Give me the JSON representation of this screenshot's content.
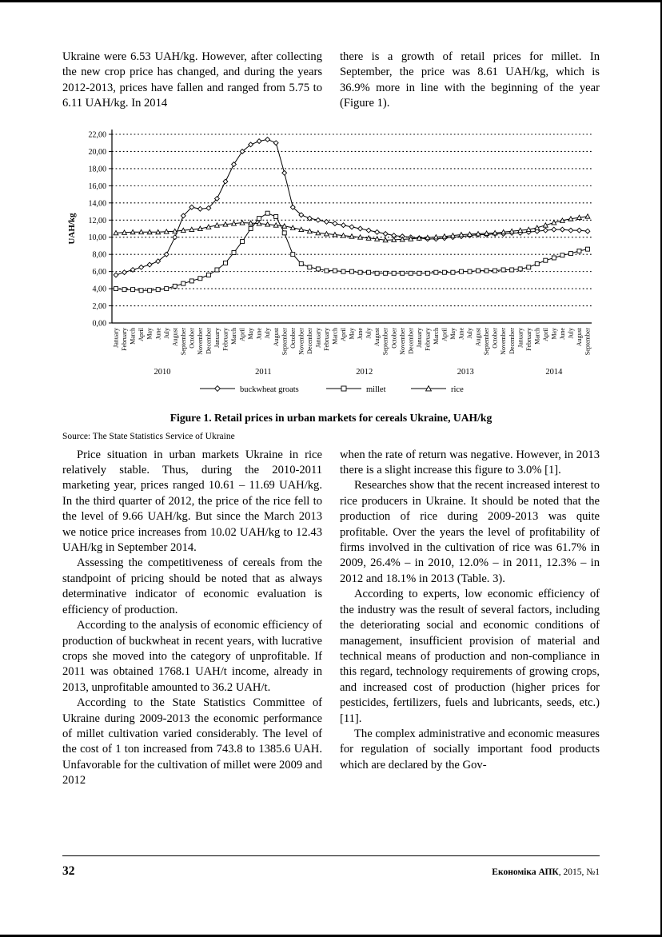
{
  "page": {
    "footer_page_number": "32",
    "footer_journal_name": "Економіка АПК",
    "footer_journal_issue": ", 2015, №1"
  },
  "intro": {
    "left": "Ukraine were 6.53 UAH/kg. However, after collecting the new crop price has changed, and during the years 2012-2013, prices have fallen and ranged from 5.75 to 6.11 UAH/kg. In 2014",
    "right": "there is a growth of retail prices for millet. In September, the price was 8.61 UAH/kg, which is 36.9% more in line with the beginning of the year (Figure 1)."
  },
  "figure": {
    "caption": "Figure 1. Retail prices in urban markets for cereals Ukraine, UAH/kg",
    "source": "Source: The State Statistics Service of Ukraine"
  },
  "body": {
    "left_paragraphs": [
      "Price situation in urban markets Ukraine in rice relatively stable. Thus, during the 2010-2011 marketing year, prices ranged 10.61 – 11.69 UAH/kg. In the third quarter of 2012, the price of the rice fell to the level of 9.66 UAH/kg. But since the March 2013 we notice price increases from 10.02 UAH/kg to 12.43 UAH/kg in September 2014.",
      "Assessing the competitiveness of cereals from the standpoint of pricing should be noted that as always determinative indicator of economic evaluation is efficiency of production.",
      "According to the analysis of economic efficiency of production of buckwheat in recent years, with lucrative crops she moved into the category of unprofitable. If 2011 was obtained 1768.1 UAH/t income, already in 2013, unprofitable amounted to 36.2 UAH/t.",
      "According to the State Statistics Committee of Ukraine during 2009-2013 the economic performance of millet cultivation varied considerably. The level of the cost of 1 ton increased from 743.8 to 1385.6 UAH. Unfavorable for the cultivation of millet were 2009 and 2012"
    ],
    "right_paragraphs": [
      "when the rate of return was negative. However, in 2013 there is a slight increase this figure to 3.0% [1].",
      "Researches show that the recent increased interest to rice producers in Ukraine. It should be noted that the production of rice during 2009-2013 was quite profitable. Over the years the level of profitability of firms involved in the cultivation of rice was 61.7% in 2009, 26.4% – in 2010, 12.0% – in 2011, 12.3% – in 2012 and 18.1% in 2013 (Table. 3).",
      "According to experts, low economic efficiency of the industry was the result of several factors, including the deteriorating social and economic conditions of management, insufficient provision of material and technical means of production and non-compliance in this regard, technology requirements of growing crops, and increased cost of production (higher prices for pesticides, fertilizers, fuels and lubricants, seeds, etc.) [11].",
      "The complex administrative and economic measures for regulation of socially important food products which are declared by the Gov-"
    ]
  },
  "chart_data": {
    "type": "line",
    "title": "",
    "xlabel": "",
    "ylabel": "UAH/kg",
    "ylim": [
      0,
      22
    ],
    "ytick_step": 2,
    "ytick_labels": [
      "0,00",
      "2,00",
      "4,00",
      "6,00",
      "8,00",
      "10,00",
      "12,00",
      "14,00",
      "16,00",
      "18,00",
      "20,00",
      "22,00"
    ],
    "grid": "dotted-horizontal",
    "legend_position": "bottom",
    "month_names": [
      "January",
      "February",
      "March",
      "April",
      "May",
      "June",
      "July",
      "August",
      "September",
      "October",
      "November",
      "December"
    ],
    "years": [
      {
        "year": "2010",
        "count": 12
      },
      {
        "year": "2011",
        "count": 12
      },
      {
        "year": "2012",
        "count": 12
      },
      {
        "year": "2013",
        "count": 12
      },
      {
        "year": "2014",
        "count": 9
      }
    ],
    "series": [
      {
        "name": "buckwheat groats",
        "marker": "diamond",
        "values": [
          5.6,
          5.9,
          6.2,
          6.5,
          6.8,
          7.2,
          8.0,
          10.0,
          12.5,
          13.5,
          13.3,
          13.4,
          14.5,
          16.5,
          18.5,
          20.0,
          20.8,
          21.2,
          21.4,
          21.0,
          17.5,
          13.5,
          12.6,
          12.2,
          12.0,
          11.8,
          11.6,
          11.4,
          11.2,
          11.0,
          10.8,
          10.6,
          10.4,
          10.2,
          10.1,
          10.0,
          9.9,
          9.8,
          9.8,
          9.9,
          10.0,
          10.1,
          10.2,
          10.3,
          10.3,
          10.4,
          10.4,
          10.5,
          10.5,
          10.6,
          10.7,
          10.8,
          10.9,
          10.9,
          10.8,
          10.8,
          10.7
        ]
      },
      {
        "name": "millet",
        "marker": "square",
        "values": [
          4.0,
          3.9,
          3.9,
          3.8,
          3.8,
          3.9,
          4.0,
          4.3,
          4.6,
          4.9,
          5.2,
          5.6,
          6.2,
          7.0,
          8.2,
          9.5,
          11.0,
          12.2,
          12.8,
          12.4,
          10.5,
          8.0,
          6.9,
          6.5,
          6.3,
          6.1,
          6.1,
          6.0,
          6.0,
          5.9,
          5.9,
          5.8,
          5.8,
          5.8,
          5.8,
          5.8,
          5.8,
          5.8,
          5.9,
          5.9,
          5.9,
          6.0,
          6.0,
          6.1,
          6.1,
          6.1,
          6.2,
          6.2,
          6.3,
          6.5,
          6.9,
          7.3,
          7.6,
          7.9,
          8.1,
          8.4,
          8.61
        ]
      },
      {
        "name": "rice",
        "marker": "triangle",
        "values": [
          10.5,
          10.55,
          10.6,
          10.61,
          10.6,
          10.6,
          10.65,
          10.7,
          10.8,
          10.9,
          11.0,
          11.2,
          11.4,
          11.5,
          11.6,
          11.69,
          11.65,
          11.6,
          11.5,
          11.4,
          11.3,
          11.1,
          10.9,
          10.7,
          10.5,
          10.4,
          10.3,
          10.2,
          10.1,
          10.0,
          9.9,
          9.8,
          9.66,
          9.7,
          9.75,
          9.8,
          9.9,
          9.95,
          10.02,
          10.1,
          10.2,
          10.3,
          10.35,
          10.4,
          10.45,
          10.5,
          10.6,
          10.7,
          10.8,
          10.9,
          11.1,
          11.4,
          11.7,
          11.95,
          12.15,
          12.3,
          12.43
        ]
      }
    ]
  }
}
